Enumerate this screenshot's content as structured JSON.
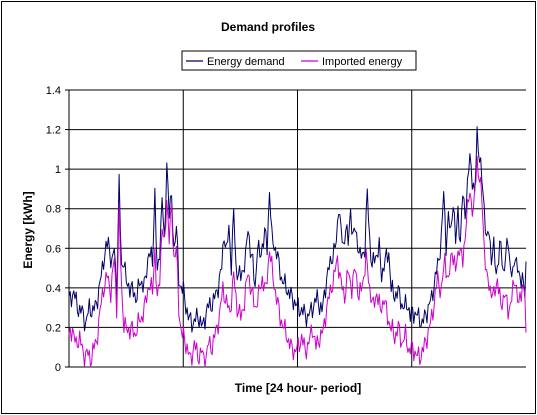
{
  "chart_data": {
    "type": "line",
    "title": "Demand profiles",
    "xlabel": "Time [24 hour- period]",
    "ylabel": "Energy [kWh]",
    "ylim": [
      0,
      1.4
    ],
    "yticks": [
      "0",
      "0.2",
      "0.4",
      "0.6",
      "0.8",
      "1",
      "1.2",
      "1.4"
    ],
    "x_period_count": 4,
    "samples_per_period": 96,
    "grid": true,
    "legend_position": "top",
    "series": [
      {
        "name": "Energy demand",
        "color": "#000066",
        "anchors": [
          [
            0,
            0.33
          ],
          [
            4,
            0.38
          ],
          [
            7,
            0.3
          ],
          [
            11,
            0.28
          ],
          [
            14,
            0.22
          ],
          [
            17,
            0.3
          ],
          [
            20,
            0.28
          ],
          [
            23,
            0.32
          ],
          [
            26,
            0.42
          ],
          [
            30,
            0.58
          ],
          [
            33,
            0.63
          ],
          [
            36,
            0.52
          ],
          [
            38,
            0.6
          ],
          [
            40,
            0.38
          ],
          [
            42,
            0.93
          ],
          [
            44,
            0.5
          ],
          [
            46,
            0.55
          ],
          [
            48,
            0.42
          ],
          [
            52,
            0.4
          ],
          [
            56,
            0.35
          ],
          [
            60,
            0.43
          ],
          [
            64,
            0.42
          ],
          [
            67,
            0.6
          ],
          [
            70,
            0.52
          ],
          [
            72,
            0.9
          ],
          [
            74,
            0.45
          ],
          [
            76,
            0.58
          ],
          [
            78,
            0.88
          ],
          [
            80,
            0.6
          ],
          [
            82,
            1.05
          ],
          [
            84,
            0.78
          ],
          [
            86,
            0.85
          ],
          [
            88,
            0.6
          ],
          [
            90,
            0.7
          ],
          [
            92,
            0.45
          ],
          [
            94,
            0.4
          ],
          [
            96,
            0.38
          ],
          [
            100,
            0.25
          ],
          [
            104,
            0.22
          ],
          [
            108,
            0.26
          ],
          [
            112,
            0.2
          ],
          [
            116,
            0.3
          ],
          [
            120,
            0.32
          ],
          [
            124,
            0.38
          ],
          [
            128,
            0.5
          ],
          [
            130,
            0.68
          ],
          [
            132,
            0.58
          ],
          [
            134,
            0.7
          ],
          [
            136,
            0.52
          ],
          [
            138,
            0.78
          ],
          [
            140,
            0.5
          ],
          [
            144,
            0.45
          ],
          [
            148,
            0.55
          ],
          [
            150,
            0.7
          ],
          [
            152,
            0.6
          ],
          [
            154,
            0.52
          ],
          [
            156,
            0.4
          ],
          [
            158,
            0.62
          ],
          [
            160,
            0.55
          ],
          [
            164,
            0.68
          ],
          [
            166,
            0.6
          ],
          [
            168,
            0.9
          ],
          [
            170,
            0.65
          ],
          [
            174,
            0.58
          ],
          [
            178,
            0.45
          ],
          [
            182,
            0.4
          ],
          [
            186,
            0.36
          ],
          [
            190,
            0.32
          ],
          [
            192,
            0.3
          ],
          [
            196,
            0.28
          ],
          [
            200,
            0.25
          ],
          [
            204,
            0.3
          ],
          [
            208,
            0.35
          ],
          [
            212,
            0.28
          ],
          [
            216,
            0.45
          ],
          [
            220,
            0.55
          ],
          [
            224,
            0.62
          ],
          [
            226,
            0.83
          ],
          [
            228,
            0.68
          ],
          [
            230,
            0.6
          ],
          [
            232,
            0.72
          ],
          [
            234,
            0.62
          ],
          [
            236,
            0.8
          ],
          [
            238,
            0.65
          ],
          [
            240,
            0.7
          ],
          [
            244,
            0.55
          ],
          [
            248,
            0.6
          ],
          [
            250,
            0.88
          ],
          [
            252,
            0.65
          ],
          [
            254,
            0.5
          ],
          [
            256,
            0.55
          ],
          [
            260,
            0.6
          ],
          [
            262,
            0.46
          ],
          [
            264,
            0.52
          ],
          [
            268,
            0.58
          ],
          [
            270,
            0.4
          ],
          [
            272,
            0.36
          ],
          [
            276,
            0.38
          ],
          [
            280,
            0.3
          ],
          [
            284,
            0.32
          ],
          [
            286,
            0.25
          ],
          [
            288,
            0.28
          ],
          [
            292,
            0.26
          ],
          [
            296,
            0.22
          ],
          [
            300,
            0.28
          ],
          [
            304,
            0.35
          ],
          [
            306,
            0.42
          ],
          [
            308,
            0.48
          ],
          [
            310,
            0.55
          ],
          [
            312,
            0.65
          ],
          [
            314,
            0.88
          ],
          [
            316,
            0.62
          ],
          [
            318,
            0.75
          ],
          [
            320,
            0.68
          ],
          [
            322,
            0.85
          ],
          [
            324,
            0.62
          ],
          [
            326,
            0.8
          ],
          [
            328,
            0.62
          ],
          [
            330,
            0.88
          ],
          [
            332,
            0.78
          ],
          [
            334,
            0.9
          ],
          [
            336,
            1.08
          ],
          [
            338,
            0.95
          ],
          [
            340,
            0.85
          ],
          [
            342,
            1.2
          ],
          [
            344,
            1.05
          ],
          [
            346,
            0.95
          ],
          [
            348,
            0.82
          ],
          [
            350,
            0.62
          ],
          [
            352,
            0.7
          ],
          [
            354,
            0.55
          ],
          [
            356,
            0.6
          ],
          [
            358,
            0.48
          ],
          [
            360,
            0.55
          ],
          [
            362,
            0.62
          ],
          [
            364,
            0.48
          ],
          [
            366,
            0.55
          ],
          [
            368,
            0.65
          ],
          [
            370,
            0.5
          ],
          [
            372,
            0.45
          ],
          [
            374,
            0.58
          ],
          [
            376,
            0.5
          ],
          [
            378,
            0.42
          ],
          [
            380,
            0.48
          ],
          [
            382,
            0.36
          ],
          [
            383,
            0.48
          ]
        ]
      },
      {
        "name": "Imported energy",
        "color": "#cc00cc",
        "anchors": [
          [
            0,
            0.14
          ],
          [
            3,
            0.2
          ],
          [
            6,
            0.1
          ],
          [
            9,
            0.16
          ],
          [
            12,
            0.05
          ],
          [
            15,
            0.08
          ],
          [
            18,
            0.02
          ],
          [
            20,
            0.09
          ],
          [
            23,
            0.12
          ],
          [
            26,
            0.28
          ],
          [
            29,
            0.4
          ],
          [
            32,
            0.46
          ],
          [
            35,
            0.38
          ],
          [
            38,
            0.55
          ],
          [
            40,
            0.3
          ],
          [
            42,
            0.78
          ],
          [
            44,
            0.4
          ],
          [
            46,
            0.22
          ],
          [
            49,
            0.18
          ],
          [
            52,
            0.2
          ],
          [
            55,
            0.16
          ],
          [
            58,
            0.22
          ],
          [
            61,
            0.25
          ],
          [
            64,
            0.32
          ],
          [
            67,
            0.42
          ],
          [
            70,
            0.38
          ],
          [
            72,
            0.6
          ],
          [
            74,
            0.32
          ],
          [
            76,
            0.45
          ],
          [
            78,
            0.72
          ],
          [
            80,
            0.6
          ],
          [
            82,
            0.86
          ],
          [
            84,
            0.65
          ],
          [
            86,
            0.8
          ],
          [
            88,
            0.55
          ],
          [
            90,
            0.6
          ],
          [
            92,
            0.3
          ],
          [
            94,
            0.18
          ],
          [
            96,
            0.15
          ],
          [
            99,
            0.1
          ],
          [
            102,
            0.03
          ],
          [
            105,
            0.12
          ],
          [
            108,
            0.05
          ],
          [
            111,
            0.08
          ],
          [
            114,
            0.02
          ],
          [
            117,
            0.12
          ],
          [
            120,
            0.1
          ],
          [
            123,
            0.18
          ],
          [
            126,
            0.25
          ],
          [
            129,
            0.4
          ],
          [
            132,
            0.32
          ],
          [
            135,
            0.28
          ],
          [
            138,
            0.46
          ],
          [
            141,
            0.3
          ],
          [
            144,
            0.25
          ],
          [
            147,
            0.33
          ],
          [
            150,
            0.48
          ],
          [
            153,
            0.38
          ],
          [
            156,
            0.3
          ],
          [
            159,
            0.36
          ],
          [
            162,
            0.45
          ],
          [
            165,
            0.38
          ],
          [
            168,
            0.6
          ],
          [
            171,
            0.45
          ],
          [
            174,
            0.35
          ],
          [
            177,
            0.25
          ],
          [
            180,
            0.2
          ],
          [
            183,
            0.15
          ],
          [
            186,
            0.1
          ],
          [
            189,
            0.08
          ],
          [
            192,
            0.1
          ],
          [
            195,
            0.15
          ],
          [
            198,
            0.08
          ],
          [
            201,
            0.12
          ],
          [
            204,
            0.2
          ],
          [
            207,
            0.1
          ],
          [
            210,
            0.15
          ],
          [
            213,
            0.18
          ],
          [
            216,
            0.3
          ],
          [
            219,
            0.38
          ],
          [
            222,
            0.45
          ],
          [
            225,
            0.55
          ],
          [
            228,
            0.42
          ],
          [
            231,
            0.36
          ],
          [
            234,
            0.48
          ],
          [
            237,
            0.4
          ],
          [
            240,
            0.5
          ],
          [
            243,
            0.35
          ],
          [
            246,
            0.42
          ],
          [
            249,
            0.55
          ],
          [
            252,
            0.4
          ],
          [
            255,
            0.3
          ],
          [
            258,
            0.38
          ],
          [
            261,
            0.28
          ],
          [
            264,
            0.35
          ],
          [
            267,
            0.25
          ],
          [
            270,
            0.2
          ],
          [
            273,
            0.15
          ],
          [
            276,
            0.2
          ],
          [
            279,
            0.12
          ],
          [
            282,
            0.16
          ],
          [
            285,
            0.08
          ],
          [
            288,
            0.1
          ],
          [
            291,
            0.06
          ],
          [
            294,
            0.05
          ],
          [
            297,
            0.09
          ],
          [
            300,
            0.15
          ],
          [
            303,
            0.22
          ],
          [
            306,
            0.32
          ],
          [
            309,
            0.45
          ],
          [
            312,
            0.38
          ],
          [
            315,
            0.55
          ],
          [
            318,
            0.42
          ],
          [
            321,
            0.6
          ],
          [
            324,
            0.48
          ],
          [
            327,
            0.62
          ],
          [
            330,
            0.52
          ],
          [
            333,
            0.75
          ],
          [
            336,
            0.88
          ],
          [
            339,
            0.78
          ],
          [
            342,
            1.05
          ],
          [
            344,
            0.95
          ],
          [
            346,
            0.85
          ],
          [
            348,
            0.62
          ],
          [
            350,
            0.45
          ],
          [
            353,
            0.4
          ],
          [
            356,
            0.35
          ],
          [
            359,
            0.45
          ],
          [
            362,
            0.3
          ],
          [
            365,
            0.38
          ],
          [
            368,
            0.28
          ],
          [
            371,
            0.35
          ],
          [
            374,
            0.45
          ],
          [
            377,
            0.3
          ],
          [
            380,
            0.42
          ],
          [
            382,
            0.38
          ],
          [
            383,
            0.12
          ]
        ]
      }
    ]
  }
}
